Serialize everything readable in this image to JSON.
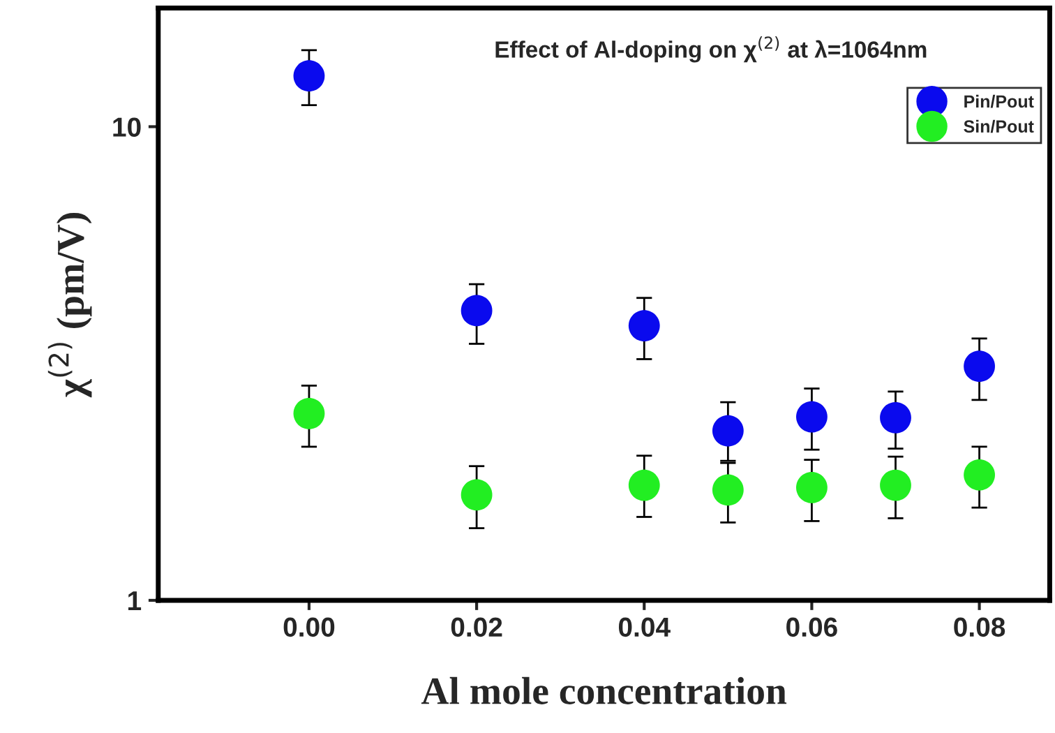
{
  "chart_data": {
    "type": "scatter",
    "annotations": [
      "Effect of Al-doping on χ$^{(2)}$ at λ=1064nm"
    ],
    "xlabel": "Al mole concentration",
    "ylabel": "χ$^{(2)}$ (pm/V)",
    "x": [
      0.0,
      0.02,
      0.04,
      0.05,
      0.06,
      0.07,
      0.08
    ],
    "series": [
      {
        "name": "Pin/Pout",
        "color": "#0a0aee",
        "values": [
          12.8,
          4.09,
          3.8,
          2.28,
          2.44,
          2.43,
          3.12
        ],
        "errors": [
          [
            11.1,
            14.5
          ],
          [
            3.48,
            4.65
          ],
          [
            3.23,
            4.35
          ],
          [
            1.97,
            2.62
          ],
          [
            2.08,
            2.8
          ],
          [
            2.09,
            2.76
          ],
          [
            2.65,
            3.57
          ]
        ]
      },
      {
        "name": "Sin/Pout",
        "color": "#22ee22",
        "values": [
          2.48,
          1.67,
          1.75,
          1.71,
          1.73,
          1.75,
          1.84
        ],
        "errors": [
          [
            2.11,
            2.84
          ],
          [
            1.42,
            1.92
          ],
          [
            1.5,
            2.02
          ],
          [
            1.46,
            1.95
          ],
          [
            1.47,
            1.98
          ],
          [
            1.49,
            2.01
          ],
          [
            1.57,
            2.11
          ]
        ]
      }
    ],
    "log": "y",
    "xlim": [
      -0.018,
      0.0884
    ],
    "ylim": [
      1,
      17.8
    ],
    "xticks": [
      {
        "value": 0.0,
        "label": "0.00"
      },
      {
        "value": 0.02,
        "label": "0.02"
      },
      {
        "value": 0.04,
        "label": "0.04"
      },
      {
        "value": 0.06,
        "label": "0.06"
      },
      {
        "value": 0.08,
        "label": "0.08"
      }
    ],
    "yticks": [
      1,
      10
    ],
    "legend": "top right",
    "marker": "circle",
    "grid": false
  }
}
